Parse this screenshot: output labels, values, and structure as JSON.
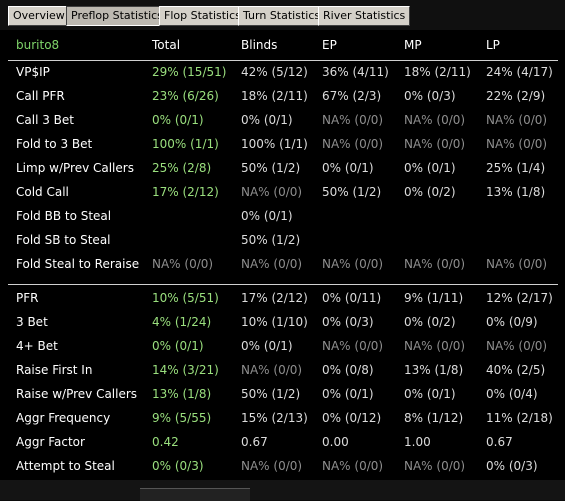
{
  "tabs": [
    {
      "label": "Overview",
      "active": false
    },
    {
      "label": "Preflop Statistics",
      "active": true
    },
    {
      "label": "Flop Statistics",
      "active": false
    },
    {
      "label": "Turn Statistics",
      "active": false
    },
    {
      "label": "River Statistics",
      "active": false
    }
  ],
  "header": {
    "player": "burito8",
    "columns": [
      "Total",
      "Blinds",
      "EP",
      "MP",
      "LP"
    ]
  },
  "section1": [
    {
      "label": "VP$IP",
      "values": [
        "29% (15/51)",
        "42% (5/12)",
        "36% (4/11)",
        "18% (2/11)",
        "24% (4/17)"
      ]
    },
    {
      "label": "Call PFR",
      "values": [
        "23% (6/26)",
        "18% (2/11)",
        "67% (2/3)",
        "0% (0/3)",
        "22% (2/9)"
      ]
    },
    {
      "label": "Call 3 Bet",
      "values": [
        "0% (0/1)",
        "0% (0/1)",
        "NA% (0/0)",
        "NA% (0/0)",
        "NA% (0/0)"
      ]
    },
    {
      "label": "Fold to 3 Bet",
      "values": [
        "100% (1/1)",
        "100% (1/1)",
        "NA% (0/0)",
        "NA% (0/0)",
        "NA% (0/0)"
      ]
    },
    {
      "label": "Limp w/Prev Callers",
      "values": [
        "25% (2/8)",
        "50% (1/2)",
        "0% (0/1)",
        "0% (0/1)",
        "25% (1/4)"
      ]
    },
    {
      "label": "Cold Call",
      "values": [
        "17% (2/12)",
        "NA% (0/0)",
        "50% (1/2)",
        "0% (0/2)",
        "13% (1/8)"
      ]
    },
    {
      "label": "Fold BB to Steal",
      "values": [
        "",
        "0% (0/1)",
        "",
        "",
        ""
      ]
    },
    {
      "label": "Fold SB to Steal",
      "values": [
        "",
        "50% (1/2)",
        "",
        "",
        ""
      ]
    },
    {
      "label": "Fold Steal to Reraise",
      "values": [
        "NA% (0/0)",
        "NA% (0/0)",
        "NA% (0/0)",
        "NA% (0/0)",
        "NA% (0/0)"
      ]
    }
  ],
  "section2": [
    {
      "label": "PFR",
      "values": [
        "10% (5/51)",
        "17% (2/12)",
        "0% (0/11)",
        "9% (1/11)",
        "12% (2/17)"
      ]
    },
    {
      "label": "3 Bet",
      "values": [
        "4% (1/24)",
        "10% (1/10)",
        "0% (0/3)",
        "0% (0/2)",
        "0% (0/9)"
      ]
    },
    {
      "label": "4+ Bet",
      "values": [
        "0% (0/1)",
        "0% (0/1)",
        "NA% (0/0)",
        "NA% (0/0)",
        "NA% (0/0)"
      ]
    },
    {
      "label": "Raise First In",
      "values": [
        "14% (3/21)",
        "NA% (0/0)",
        "0% (0/8)",
        "13% (1/8)",
        "40% (2/5)"
      ]
    },
    {
      "label": "Raise w/Prev Callers",
      "values": [
        "13% (1/8)",
        "50% (1/2)",
        "0% (0/1)",
        "0% (0/1)",
        "0% (0/4)"
      ]
    },
    {
      "label": "Aggr Frequency",
      "values": [
        "9% (5/55)",
        "15% (2/13)",
        "0% (0/12)",
        "8% (1/12)",
        "11% (2/18)"
      ]
    },
    {
      "label": "Aggr Factor",
      "values": [
        "0.42",
        "0.67",
        "0.00",
        "1.00",
        "0.67"
      ]
    },
    {
      "label": "Attempt to Steal",
      "values": [
        "0% (0/3)",
        "NA% (0/0)",
        "NA% (0/0)",
        "NA% (0/0)",
        "0% (0/3)"
      ]
    }
  ],
  "colors": {
    "player_name": "#7fd46a",
    "total_column": "#9adf7e",
    "na_value": "#8e8e8e",
    "value": "#dcdcdc",
    "label": "#ffffff"
  }
}
